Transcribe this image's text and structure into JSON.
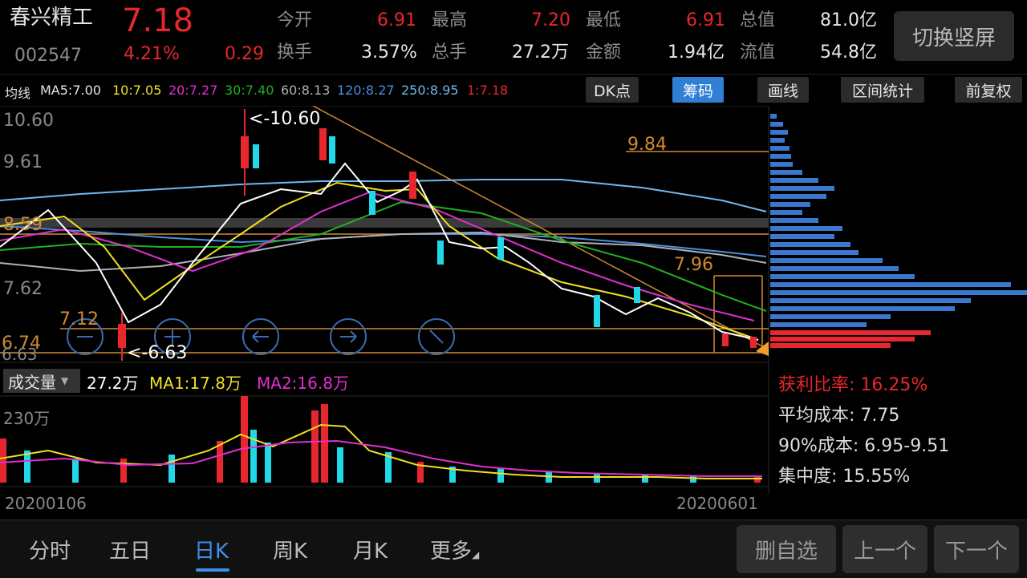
{
  "stock": {
    "name": "春兴精工",
    "code": "002547",
    "price": "7.18",
    "change_pct": "4.21%",
    "change": "0.29"
  },
  "quote": {
    "open_label": "今开",
    "open": "6.91",
    "turnover_label": "换手",
    "turnover": "3.57%",
    "high_label": "最高",
    "high": "7.20",
    "volume_label": "总手",
    "volume": "27.2万",
    "low_label": "最低",
    "low": "6.91",
    "amount_label": "金额",
    "amount": "1.94亿",
    "mktcap_label": "总值",
    "mktcap": "81.0亿",
    "float_label": "流值",
    "float": "54.8亿"
  },
  "switch_button": "切换竖屏",
  "ma_legend": {
    "title": "均线",
    "ma5": "MA5:7.00",
    "ma10": "10:7.05",
    "ma20": "20:7.27",
    "ma30": "30:7.40",
    "ma60": "60:8.13",
    "ma120": "120:8.27",
    "ma250": "250:8.95",
    "ma1": "1:7.18"
  },
  "tools": [
    "DK点",
    "筹码",
    "画线",
    "区间统计",
    "前复权"
  ],
  "y_axis": [
    "10.60",
    "9.61",
    "8.59",
    "7.62",
    "6.74",
    "6.63"
  ],
  "annotations": {
    "max_label": "<-10.60",
    "min_label": "<-6.63",
    "line1": "9.84",
    "line2": "7.96",
    "line3": "7.12"
  },
  "chip_stats": {
    "profit_ratio": "获利比率: 16.25%",
    "avg_cost": "平均成本: 7.75",
    "cost90": "90%成本: 6.95-9.51",
    "concentration": "集中度: 15.55%"
  },
  "volume": {
    "selector": "成交量",
    "value": "27.2万",
    "ma1": "MA1:17.8万",
    "ma2": "MA2:16.8万",
    "scale": "230万"
  },
  "dates": {
    "start": "20200106",
    "end": "20200601"
  },
  "tabs": [
    "分时",
    "五日",
    "日K",
    "周K",
    "月K",
    "更多"
  ],
  "bottom_buttons": [
    "删自选",
    "上一个",
    "下一个"
  ],
  "colors": {
    "up": "#e8262d",
    "down": "#20d8e8",
    "ma5": "#ffffff",
    "ma10": "#f0e020",
    "ma20": "#e030d0",
    "ma30": "#20b020",
    "ma60": "#b0b0b0",
    "ma120": "#4a90e0",
    "ma250": "#70b8f0",
    "accent": "#f0a030"
  }
}
